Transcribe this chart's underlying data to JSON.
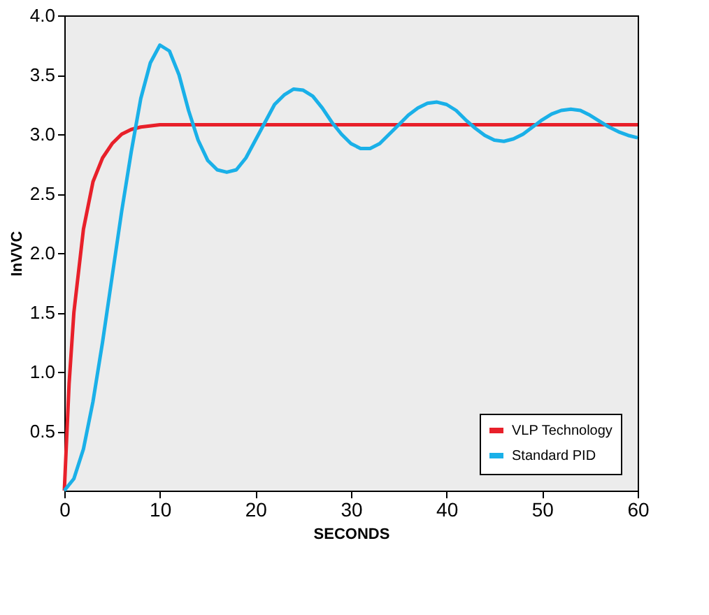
{
  "chart_data": {
    "type": "line",
    "xlabel": "SECONDS",
    "ylabel": "InVVC",
    "xlim": [
      0,
      60
    ],
    "ylim": [
      0,
      4
    ],
    "xticks": [
      0,
      10,
      20,
      30,
      40,
      50,
      60
    ],
    "yticks": [
      0.5,
      {
        "value": 1,
        "label": "1.0"
      },
      1.5,
      {
        "value": 2,
        "label": "2.0"
      },
      2.5,
      {
        "value": 3,
        "label": "3.0"
      },
      3.5,
      {
        "value": 4,
        "label": "4.0"
      }
    ],
    "grid": false,
    "legend": "bottom right",
    "line_style": "solid",
    "marker": "none",
    "series": [
      {
        "name": "VLP Technology",
        "color": "#e8202a",
        "x": [
          0,
          0.5,
          1,
          2,
          3,
          4,
          5,
          6,
          7,
          8,
          10,
          60
        ],
        "values": [
          0,
          0.9,
          1.5,
          2.2,
          2.6,
          2.8,
          2.92,
          3.0,
          3.04,
          3.06,
          3.08,
          3.08
        ]
      },
      {
        "name": "Standard PID",
        "color": "#1ab0e8",
        "x": [
          0,
          1,
          2,
          3,
          4,
          5,
          6,
          7,
          8,
          9,
          10,
          11,
          12,
          13,
          14,
          15,
          16,
          17,
          18,
          19,
          20,
          21,
          22,
          23,
          24,
          25,
          26,
          27,
          28,
          29,
          30,
          31,
          32,
          33,
          34,
          35,
          36,
          37,
          38,
          39,
          40,
          41,
          42,
          43,
          44,
          45,
          46,
          47,
          48,
          49,
          50,
          51,
          52,
          53,
          54,
          55,
          56,
          57,
          58,
          59,
          60
        ],
        "values": [
          0,
          0.1,
          0.35,
          0.75,
          1.25,
          1.8,
          2.35,
          2.85,
          3.3,
          3.6,
          3.75,
          3.7,
          3.5,
          3.2,
          2.95,
          2.78,
          2.7,
          2.68,
          2.7,
          2.8,
          2.95,
          3.1,
          3.25,
          3.33,
          3.38,
          3.37,
          3.32,
          3.22,
          3.1,
          3.0,
          2.92,
          2.88,
          2.88,
          2.92,
          3.0,
          3.08,
          3.16,
          3.22,
          3.26,
          3.27,
          3.25,
          3.2,
          3.12,
          3.05,
          2.99,
          2.95,
          2.94,
          2.96,
          3.0,
          3.06,
          3.12,
          3.17,
          3.2,
          3.21,
          3.2,
          3.16,
          3.11,
          3.06,
          3.02,
          2.99,
          2.97
        ]
      }
    ]
  }
}
